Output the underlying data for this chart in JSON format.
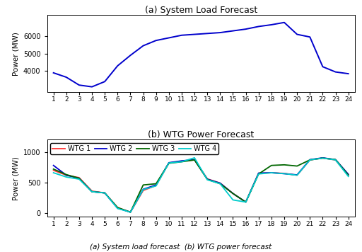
{
  "hours": [
    1,
    2,
    3,
    4,
    5,
    6,
    7,
    8,
    9,
    10,
    11,
    12,
    13,
    14,
    15,
    16,
    17,
    18,
    19,
    20,
    21,
    22,
    23,
    24
  ],
  "system_load": [
    3900,
    3650,
    3200,
    3100,
    3400,
    4300,
    4900,
    5450,
    5750,
    5900,
    6050,
    6100,
    6150,
    6200,
    6300,
    6400,
    6550,
    6650,
    6780,
    6100,
    5950,
    4250,
    3950,
    3850
  ],
  "wtg1": [
    700,
    620,
    580,
    360,
    330,
    90,
    15,
    370,
    450,
    820,
    850,
    870,
    560,
    490,
    320,
    180,
    650,
    660,
    650,
    620,
    870,
    900,
    870,
    620
  ],
  "wtg2": [
    780,
    620,
    570,
    350,
    330,
    80,
    15,
    390,
    460,
    825,
    855,
    875,
    555,
    490,
    320,
    180,
    655,
    660,
    645,
    625,
    875,
    905,
    875,
    635
  ],
  "wtg3": [
    720,
    630,
    570,
    350,
    330,
    90,
    15,
    460,
    480,
    815,
    840,
    870,
    550,
    480,
    320,
    180,
    640,
    780,
    790,
    770,
    870,
    900,
    875,
    620
  ],
  "wtg4": [
    660,
    590,
    555,
    350,
    330,
    75,
    15,
    385,
    445,
    820,
    840,
    905,
    545,
    480,
    215,
    180,
    640,
    660,
    645,
    620,
    870,
    900,
    870,
    600
  ],
  "load_color": "#0000CC",
  "wtg1_color": "#FF3333",
  "wtg2_color": "#0000CC",
  "wtg3_color": "#006600",
  "wtg4_color": "#00CCCC",
  "title_a": "(a) System Load Forecast",
  "title_b": "(b) WTG Power Forecast",
  "ylabel": "Power (MW)",
  "caption": "(a) System load forecast  (b) WTG power forecast",
  "load_ylim": [
    2800,
    7200
  ],
  "load_yticks": [
    4000,
    5000,
    6000
  ],
  "wtg_ylim": [
    -60,
    1200
  ],
  "wtg_yticks": [
    0,
    500,
    1000
  ],
  "legend_labels": [
    "WTG 1",
    "WTG 2",
    "WTG 3",
    "WTG 4"
  ]
}
